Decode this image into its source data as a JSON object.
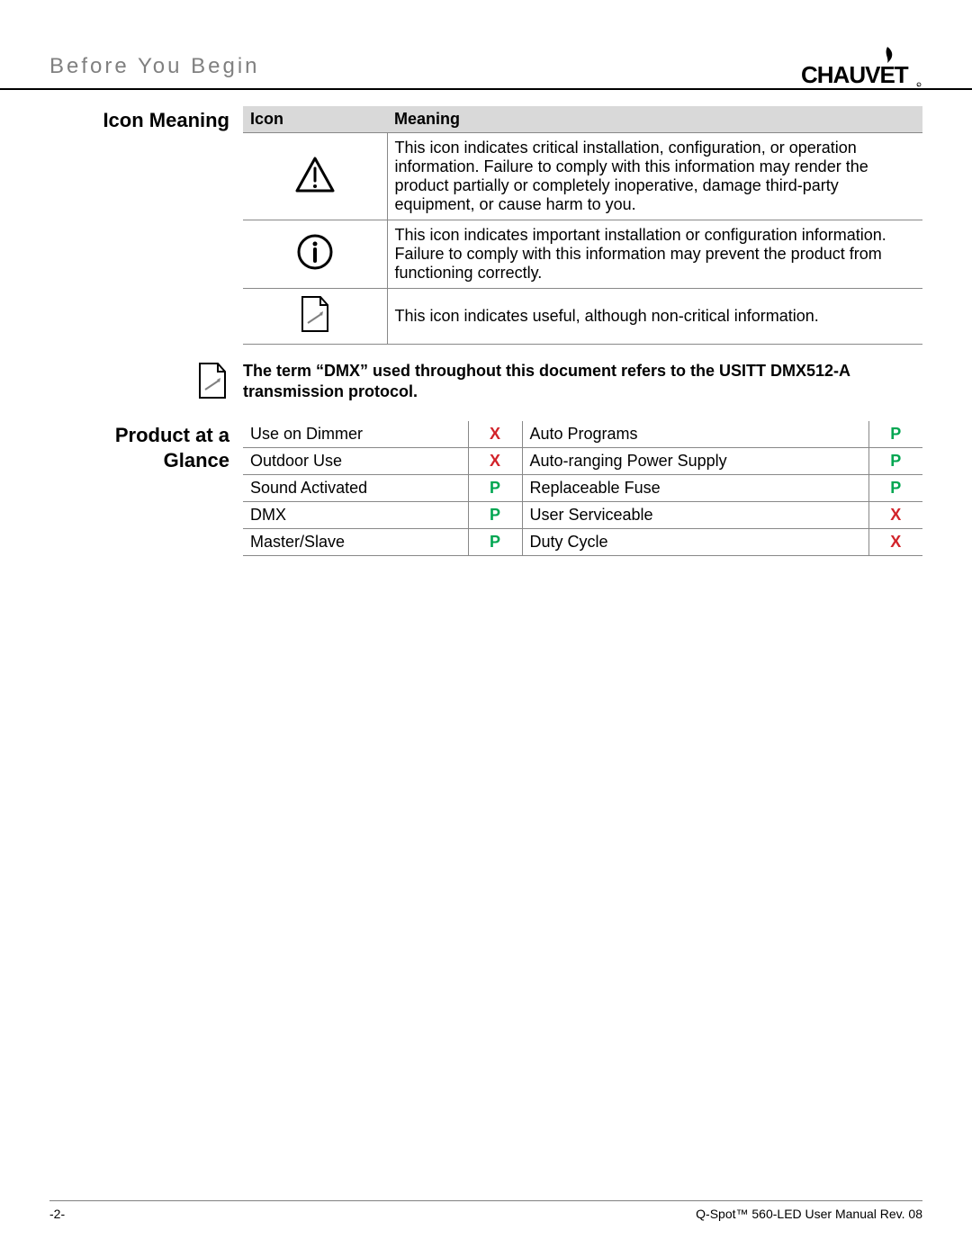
{
  "header": {
    "title": "Before You Begin"
  },
  "logo": {
    "text": "CHAUVET",
    "color": "#000000"
  },
  "icon_meaning": {
    "section_title_line1": "Icon Meaning",
    "columns": {
      "icon": "Icon",
      "meaning": "Meaning"
    },
    "rows": [
      {
        "icon": "warning-triangle",
        "meaning": "This icon indicates critical installation, configuration, or operation information. Failure to comply with this information may render the product partially or completely inoperative, damage third-party equipment, or cause harm to you."
      },
      {
        "icon": "info-circle",
        "meaning": "This icon indicates important installation or configuration information. Failure to comply with this information may prevent the product from functioning correctly."
      },
      {
        "icon": "note-page",
        "meaning": "This icon indicates useful, although non-critical information."
      }
    ]
  },
  "dmx_note": {
    "icon": "note-page",
    "text": "The term “DMX” used throughout this document refers to the USITT DMX512-A transmission protocol."
  },
  "product_glance": {
    "section_title_line1": "Product at a",
    "section_title_line2": "Glance",
    "marks": {
      "x": {
        "glyph": "X",
        "color": "#d2232a"
      },
      "p": {
        "glyph": "P",
        "color": "#00a651"
      }
    },
    "rows": [
      {
        "left_label": "Use on Dimmer",
        "left_mark": "x",
        "right_label": "Auto Programs",
        "right_mark": "p"
      },
      {
        "left_label": "Outdoor Use",
        "left_mark": "x",
        "right_label": "Auto-ranging Power Supply",
        "right_mark": "p"
      },
      {
        "left_label": "Sound Activated",
        "left_mark": "p",
        "right_label": "Replaceable Fuse",
        "right_mark": "p"
      },
      {
        "left_label": "DMX",
        "left_mark": "p",
        "right_label": "User Serviceable",
        "right_mark": "x"
      },
      {
        "left_label": "Master/Slave",
        "left_mark": "p",
        "right_label": "Duty Cycle",
        "right_mark": "x"
      }
    ]
  },
  "footer": {
    "page": "-2-",
    "doc": "Q-Spot™ 560-LED User Manual Rev. 08"
  },
  "style": {
    "section_label_fontsize": 22,
    "body_fontsize": 18,
    "header_fontsize": 24,
    "header_color": "#808080",
    "table_header_bg": "#d9d9d9",
    "border_color": "#888888",
    "page_bg": "#ffffff"
  }
}
